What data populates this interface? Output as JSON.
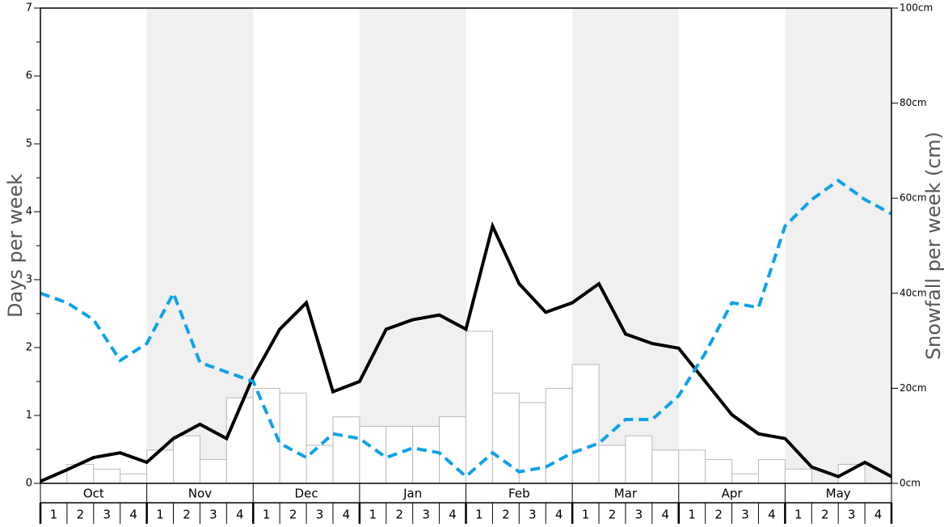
{
  "chart_data": {
    "type": "bar",
    "ylabel_left": "Days per week",
    "ylabel_right": "Snowfall per week (cm)",
    "left_axis": {
      "ylim": [
        0,
        7
      ],
      "ticks": [
        "0",
        "1",
        "2",
        "3",
        "4",
        "5",
        "6",
        "7"
      ]
    },
    "right_axis": {
      "ylim": [
        0,
        100
      ],
      "ticks": [
        "0cm",
        "20cm",
        "40cm",
        "60cm",
        "80cm",
        "100cm"
      ]
    },
    "months": [
      "Oct",
      "Nov",
      "Dec",
      "Jan",
      "Feb",
      "Mar",
      "Apr",
      "May"
    ],
    "week_labels": [
      "1",
      "2",
      "3",
      "4"
    ],
    "colors": {
      "bars_fill": "#ffffff",
      "bars_stroke": "#b8b8b8",
      "black_line": "#000000",
      "blue_dashed_line": "#0ea2e6",
      "shaded_month_band": "#f0f0f0"
    },
    "series": [
      {
        "kind": "bar",
        "axis": "right",
        "values": [
          0,
          4,
          3,
          2,
          7,
          10,
          5,
          18,
          20,
          19,
          8,
          14,
          12,
          12,
          12,
          14,
          32,
          19,
          17,
          20,
          25,
          8,
          10,
          7,
          7,
          5,
          2,
          5,
          3,
          0,
          4,
          0
        ]
      },
      {
        "kind": "line",
        "style": "solid",
        "axis": "left",
        "values": [
          0.03,
          0.2,
          0.38,
          0.45,
          0.31,
          0.66,
          0.87,
          0.66,
          1.57,
          2.27,
          2.66,
          1.35,
          1.5,
          2.27,
          2.41,
          2.48,
          2.27,
          3.79,
          2.94,
          2.52,
          2.66,
          2.94,
          2.2,
          2.06,
          1.99,
          1.5,
          1.01,
          0.73,
          0.66,
          0.24,
          0.1,
          0.31,
          0.1
        ]
      },
      {
        "kind": "line",
        "style": "dashed",
        "axis": "left",
        "values": [
          2.8,
          2.66,
          2.41,
          1.81,
          2.06,
          2.8,
          1.78,
          1.64,
          1.5,
          0.59,
          0.38,
          0.73,
          0.66,
          0.38,
          0.52,
          0.45,
          0.1,
          0.45,
          0.17,
          0.24,
          0.45,
          0.59,
          0.94,
          0.94,
          1.29,
          1.92,
          2.66,
          2.59,
          3.79,
          4.18,
          4.46,
          4.18,
          3.97
        ]
      }
    ]
  }
}
